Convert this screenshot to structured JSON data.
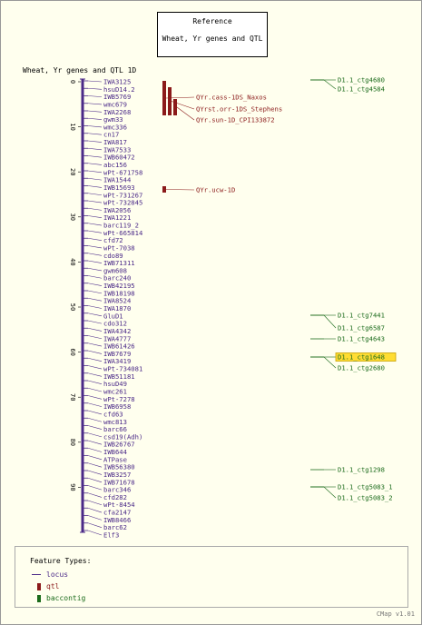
{
  "reference": {
    "title": "Reference",
    "subtitle": "Wheat, Yr genes and QTL"
  },
  "map_title": "Wheat, Yr genes and QTL 1D",
  "axis_ticks": [
    "0",
    "10",
    "20",
    "30",
    "40",
    "50",
    "60",
    "70",
    "80",
    "90"
  ],
  "markers": [
    "IWA3125",
    "hsuD14.2",
    "IWB5769",
    "wmc679",
    "IWA2268",
    "gwm33",
    "wmc336",
    "cn17",
    "IWA817",
    "IWA7533",
    "IWB60472",
    "abc156",
    "wPt-671758",
    "IWA1544",
    "IWB15693",
    "wPt-731267",
    "wPt-732845",
    "IWA2056",
    "IWA1221",
    "barc119_2",
    "wPt-665814",
    "cfd72",
    "wPt-7038",
    "cdo89",
    "IWB71311",
    "gwm608",
    "barc240",
    "IWB42195",
    "IWB18198",
    "IWA8524",
    "IWA1870",
    "GluD1",
    "cdo312",
    "IWA4342",
    "IWA4777",
    "IWB61426",
    "IWB7679",
    "IWA3419",
    "wPt-734081",
    "IWB51181",
    "hsuD49",
    "wmc261",
    "wPt-7278",
    "IWB6958",
    "cfd63",
    "wmc813",
    "barc66",
    "csd19(Adh)",
    "IWB26767",
    "IWB644",
    "ATPase",
    "IWB56380",
    "IWB3257",
    "IWB71678",
    "barc346",
    "cfd282",
    "wPt-8454",
    "cfa2147",
    "IWB8466",
    "barc62",
    "Elf3"
  ],
  "qtls": [
    "QYr.cass-1DS_Naxos",
    "QYrst.orr-1DS_Stephens",
    "QYr.sun-1D_CPI133872",
    "QYr.ucw-1D"
  ],
  "contigs": [
    "D1.1_ctg4680",
    "D1.1_ctg4584",
    "D1.1_ctg7441",
    "D1.1_ctg6587",
    "D1.1_ctg4643",
    "D1.1_ctg1648",
    "D1.1_ctg2680",
    "D1.1_ctg1298",
    "D1.1_ctg5083_1",
    "D1.1_ctg5083_2"
  ],
  "highlighted_contig": "D1.1_ctg1648",
  "legend": {
    "title": "Feature Types:",
    "items": [
      "locus",
      "qtl",
      "baccontig"
    ]
  },
  "version": "CMap v1.01",
  "colors": {
    "locus": "#4b2a88",
    "qtl": "#8b1a1a",
    "contig": "#1b6b1b",
    "highlight": "#ffdd33"
  }
}
